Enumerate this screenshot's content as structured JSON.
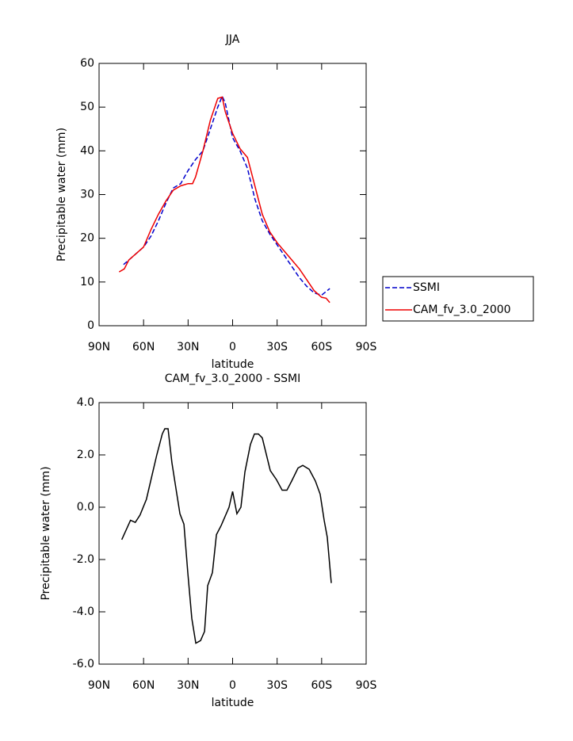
{
  "chart_data": [
    {
      "type": "line",
      "title": "JJA",
      "x_label": "latitude",
      "y_label": "Precipitable water (mm)",
      "xlim": [
        90,
        -90
      ],
      "xticks": [
        {
          "value": 90,
          "label": "90N"
        },
        {
          "value": 60,
          "label": "60N"
        },
        {
          "value": 30,
          "label": "30N"
        },
        0,
        {
          "value": -30,
          "label": "30S"
        },
        {
          "value": -60,
          "label": "60S"
        },
        {
          "value": -90,
          "label": "90S"
        }
      ],
      "ylim": [
        0,
        60
      ],
      "yticks": [
        0,
        10,
        20,
        30,
        40,
        50,
        60
      ],
      "legend": "outside-right",
      "series": [
        {
          "name": "SSMI",
          "color": "#0000cc",
          "line_style": "dashed",
          "x": [
            73.5,
            70,
            65,
            60,
            55,
            50,
            45,
            40,
            35,
            30,
            25,
            20,
            15,
            10,
            7,
            5,
            0,
            -5,
            -10,
            -15,
            -20,
            -25,
            -30,
            -35,
            -40,
            -45,
            -50,
            -55,
            -60,
            -65.5
          ],
          "values": [
            14,
            15,
            16.5,
            18,
            20.5,
            24,
            28,
            31.5,
            32.5,
            35.5,
            38,
            40,
            45,
            50,
            52.5,
            51,
            43,
            40,
            36,
            29,
            24,
            21,
            18.5,
            16,
            13.5,
            11,
            9,
            7.5,
            7,
            8.5
          ]
        },
        {
          "name": "CAM_fv_3.0_2000",
          "color": "#ee0000",
          "line_style": "solid",
          "x": [
            76.5,
            73,
            70,
            65,
            60,
            55,
            50,
            45,
            40,
            35,
            30,
            27,
            25,
            20,
            15,
            10,
            7,
            5,
            0,
            -5,
            -10,
            -15,
            -20,
            -25,
            -30,
            -35,
            -40,
            -45,
            -50,
            -55,
            -60,
            -63,
            -65.5
          ],
          "values": [
            12.3,
            13,
            15,
            16.5,
            18,
            22,
            25.5,
            28.5,
            31,
            32,
            32.5,
            32.5,
            34,
            40,
            47,
            52,
            52.3,
            49,
            44,
            40.5,
            38.5,
            32,
            25.5,
            21.5,
            19,
            17,
            15,
            13,
            10.5,
            8,
            6.5,
            6.3,
            5.3
          ]
        }
      ]
    },
    {
      "type": "line",
      "title": "CAM_fv_3.0_2000 - SSMI",
      "x_label": "latitude",
      "y_label": "Precipitable water (mm)",
      "xlim": [
        90,
        -90
      ],
      "xticks": [
        {
          "value": 90,
          "label": "90N"
        },
        {
          "value": 60,
          "label": "60N"
        },
        {
          "value": 30,
          "label": "30N"
        },
        0,
        {
          "value": -30,
          "label": "30S"
        },
        {
          "value": -60,
          "label": "60S"
        },
        {
          "value": -90,
          "label": "90S"
        }
      ],
      "ylim": [
        -6,
        4
      ],
      "yticks": [
        {
          "value": -6,
          "label": "-6.0"
        },
        {
          "value": -4,
          "label": "-4.0"
        },
        {
          "value": -2,
          "label": "-2.0"
        },
        {
          "value": 0,
          "label": "0.0"
        },
        {
          "value": 2,
          "label": "2.0"
        },
        {
          "value": 4,
          "label": "4.0"
        }
      ],
      "series": [
        {
          "color": "#000000",
          "line_style": "solid",
          "x": [
            74.7,
            68.8,
            65.6,
            62.4,
            58.1,
            54.4,
            51.1,
            47.4,
            45.7,
            43.5,
            40.9,
            38.7,
            35.5,
            32.8,
            30.2,
            27.5,
            24.8,
            21.6,
            18.9,
            16.8,
            13.6,
            10.9,
            7.7,
            2.4,
            0,
            -2.9,
            -5.6,
            -8.3,
            -12,
            -14.7,
            -17.4,
            -20,
            -25.4,
            -29.6,
            -33.4,
            -36.6,
            -39.8,
            -44.1,
            -47.3,
            -51.6,
            -55.8,
            -59,
            -61.7,
            -63.8,
            -66.5
          ],
          "values": [
            -1.24,
            -0.5,
            -0.58,
            -0.3,
            0.3,
            1.2,
            2.0,
            2.8,
            3.0,
            3.0,
            1.7,
            0.9,
            -0.25,
            -0.65,
            -2.5,
            -4.25,
            -5.2,
            -5.1,
            -4.75,
            -3.0,
            -2.5,
            -1.05,
            -0.7,
            0.0,
            0.6,
            -0.25,
            0.0,
            1.35,
            2.4,
            2.8,
            2.8,
            2.65,
            1.4,
            1.05,
            0.65,
            0.65,
            1.0,
            1.5,
            1.6,
            1.45,
            1.0,
            0.5,
            -0.5,
            -1.15,
            -2.9
          ]
        }
      ]
    }
  ]
}
